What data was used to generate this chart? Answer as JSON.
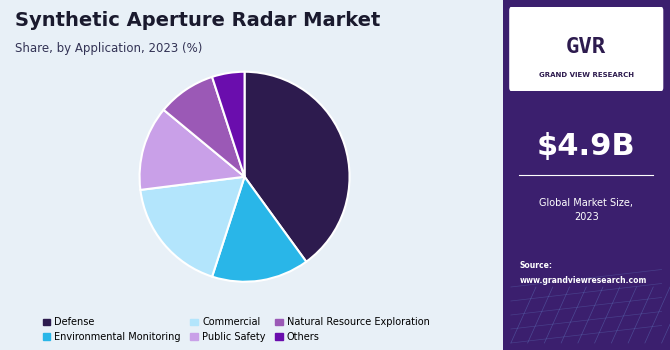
{
  "title": "Synthetic Aperture Radar Market",
  "subtitle": "Share, by Application, 2023 (%)",
  "labels": [
    "Defense",
    "Environmental Monitoring",
    "Commercial",
    "Public Safety",
    "Natural Resource Exploration",
    "Others"
  ],
  "values": [
    40,
    15,
    18,
    13,
    9,
    5
  ],
  "colors": [
    "#2d1b4e",
    "#29b6e8",
    "#b3e5fc",
    "#c9a0e8",
    "#9b59b6",
    "#6a0dad"
  ],
  "background_color": "#e8f0f7",
  "right_panel_color": "#3b1f6e",
  "market_size": "$4.9B",
  "market_label": "Global Market Size,\n2023",
  "source_text": "Source:\nwww.grandviewresearch.com",
  "legend_ncol": 3,
  "startangle": 90
}
